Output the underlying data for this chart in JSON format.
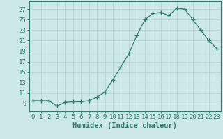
{
  "x": [
    0,
    1,
    2,
    3,
    4,
    5,
    6,
    7,
    8,
    9,
    10,
    11,
    12,
    13,
    14,
    15,
    16,
    17,
    18,
    19,
    20,
    21,
    22,
    23
  ],
  "y": [
    9.5,
    9.5,
    9.5,
    8.5,
    9.2,
    9.3,
    9.3,
    9.5,
    10.2,
    11.2,
    13.5,
    16.0,
    18.5,
    22.0,
    25.0,
    26.2,
    26.4,
    25.8,
    27.2,
    27.0,
    25.0,
    23.0,
    21.0,
    19.5
  ],
  "line_color": "#2e7d6e",
  "marker": "+",
  "marker_size": 5,
  "bg_color": "#cce8e8",
  "grid_color": "#b8d4d4",
  "xlabel": "Humidex (Indice chaleur)",
  "ylabel_ticks": [
    9,
    11,
    13,
    15,
    17,
    19,
    21,
    23,
    25,
    27
  ],
  "ylim": [
    7.5,
    28.5
  ],
  "xlim": [
    -0.5,
    23.5
  ],
  "xtick_labels": [
    "0",
    "1",
    "2",
    "3",
    "4",
    "5",
    "6",
    "7",
    "8",
    "9",
    "10",
    "11",
    "12",
    "13",
    "14",
    "15",
    "16",
    "17",
    "18",
    "19",
    "20",
    "21",
    "22",
    "23"
  ],
  "xlabel_fontsize": 7.5,
  "tick_fontsize": 6.5,
  "lw": 0.9
}
